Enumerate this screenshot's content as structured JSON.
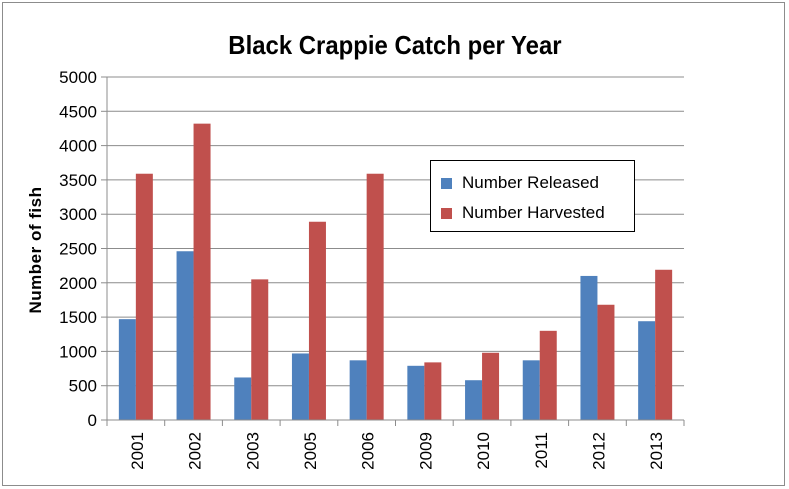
{
  "chart_data": {
    "type": "bar",
    "title": "Black Crappie Catch per Year",
    "xlabel": "",
    "ylabel": "Number of fish",
    "categories": [
      "2001",
      "2002",
      "2003",
      "2005",
      "2006",
      "2009",
      "2010",
      "2011",
      "2012",
      "2013"
    ],
    "series": [
      {
        "name": "Number Released",
        "color": "#4f81bd",
        "values": [
          1470,
          2460,
          620,
          970,
          870,
          790,
          580,
          870,
          2100,
          1440
        ]
      },
      {
        "name": "Number Harvested",
        "color": "#c0504d",
        "values": [
          3590,
          4320,
          2050,
          2890,
          3590,
          840,
          980,
          1300,
          1680,
          2190
        ]
      }
    ],
    "ylim": [
      0,
      5000
    ],
    "yticks": [
      "0",
      "500",
      "1000",
      "1500",
      "2000",
      "2500",
      "3000",
      "3500",
      "4000",
      "4500",
      "5000"
    ],
    "grid": true,
    "legend_position": "right"
  }
}
